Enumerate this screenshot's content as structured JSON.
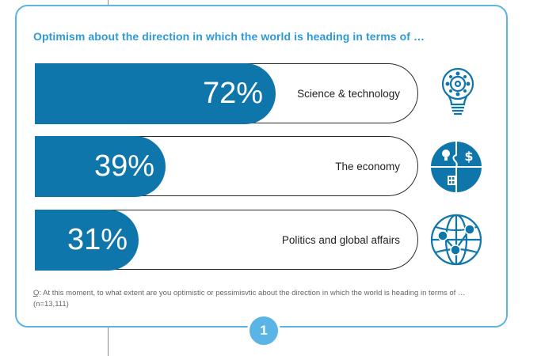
{
  "title": "Optimism about the direction in which the world is heading in terms of …",
  "chart_data": {
    "type": "bar",
    "orientation": "horizontal",
    "title": "Optimism about the direction in which the world is heading in terms of …",
    "categories": [
      "Science & technology",
      "The economy",
      "Politics and global affairs"
    ],
    "values": [
      72,
      39,
      31
    ],
    "value_labels": [
      "72%",
      "39%",
      "31%"
    ],
    "unit": "%",
    "xlim": [
      0,
      100
    ],
    "grid": false,
    "legend": "none",
    "bar_color": "#0f76ab"
  },
  "rows": [
    {
      "label": "Science & technology",
      "value_text": "72%",
      "icon": "lightbulb-gears-icon"
    },
    {
      "label": "The economy",
      "value_text": "39%",
      "icon": "economy-puzzle-icon"
    },
    {
      "label": "Politics and global affairs",
      "value_text": "31%",
      "icon": "globe-network-icon"
    }
  ],
  "question": {
    "prefix": "Q",
    "text": ": At this moment, to what extent are you optimistic or pessimisvtic about the direction in which the world is heading in terms of … (n=13,111)"
  },
  "page_number": "1",
  "colors": {
    "accent": "#2e9ad6",
    "bar": "#0f76ab",
    "frame": "#5ab4e5"
  }
}
